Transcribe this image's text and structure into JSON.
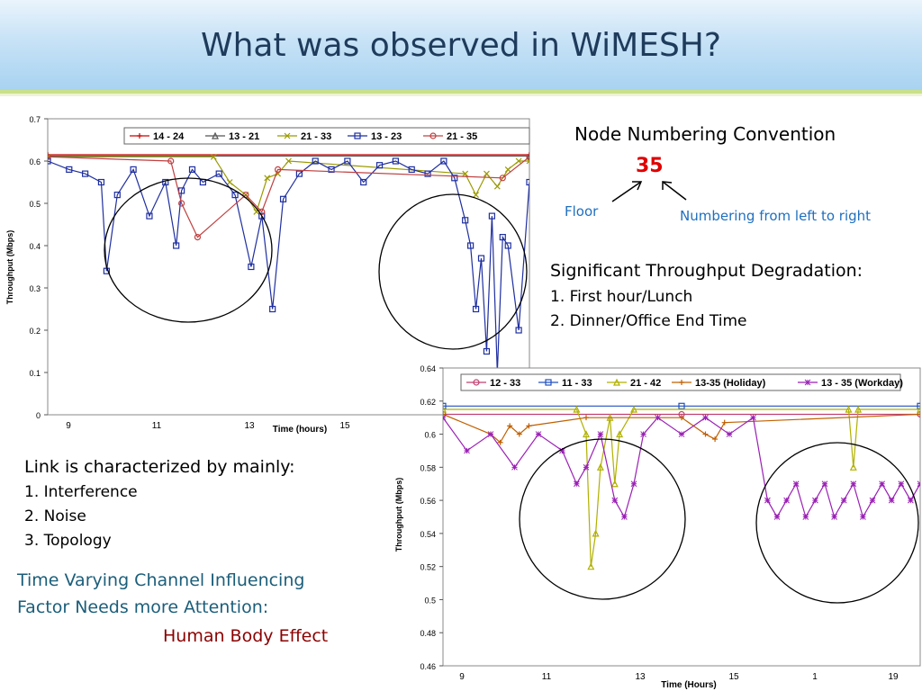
{
  "slide": {
    "title": "What was observed in WiMESH?",
    "node_convention": {
      "heading": "Node Numbering Convention",
      "example": "35",
      "floor_label": "Floor",
      "numbering_label": "Numbering from left to right"
    },
    "degradation": {
      "heading": "Significant Throughput Degradation:",
      "items": [
        "1. First hour/Lunch",
        "2. Dinner/Office End Time"
      ]
    },
    "link": {
      "heading": "Link is characterized by mainly:",
      "items": [
        "1. Interference",
        "2. Noise",
        "3. Topology"
      ]
    },
    "factor": {
      "line1": "Time Varying Channel Influencing",
      "line2": "Factor Needs more Attention:",
      "emphasis": "Human Body Effect"
    },
    "colors": {
      "title": "#1f3b5c",
      "red_number": "#e00000",
      "blue_note": "#1f6fbf",
      "teal": "#1b5e7a",
      "dark_red": "#8b0000"
    }
  },
  "chart_data": [
    {
      "type": "line",
      "xlabel": "Time (hours)",
      "ylabel": "Throughput (Mbps)",
      "ylim": [
        0,
        0.7
      ],
      "yticks": [
        "0.7",
        "0.6",
        "0.5",
        "0.4",
        "0.3",
        "0.2",
        "0.1",
        "0"
      ],
      "xticks": [
        "9",
        "11",
        "13",
        "15"
      ],
      "xlim": [
        8.5,
        17.5
      ],
      "legend": {
        "position": "top",
        "entries": [
          "14 - 24",
          "13 - 21",
          "21 - 33",
          "13 - 23",
          "21 - 35"
        ]
      },
      "series": [
        {
          "name": "14 - 24",
          "color": "#cc0000",
          "marker": "plus",
          "x": [
            8.5,
            17.5
          ],
          "y": [
            0.615,
            0.615
          ]
        },
        {
          "name": "13 - 21",
          "color": "#555555",
          "marker": "triangle",
          "x": [
            8.5,
            17.5
          ],
          "y": [
            0.612,
            0.612
          ]
        },
        {
          "name": "21 - 33",
          "color": "#9a9a00",
          "marker": "x",
          "x": [
            8.5,
            11.6,
            11.9,
            12.2,
            12.4,
            12.6,
            12.8,
            13.0,
            16.3,
            16.5,
            16.7,
            16.9,
            17.1,
            17.3,
            17.5
          ],
          "y": [
            0.61,
            0.61,
            0.55,
            0.52,
            0.48,
            0.56,
            0.57,
            0.6,
            0.57,
            0.52,
            0.57,
            0.54,
            0.58,
            0.6,
            0.6
          ]
        },
        {
          "name": "13 - 23",
          "color": "#1f2fa0",
          "marker": "square",
          "x": [
            8.5,
            8.9,
            9.2,
            9.5,
            9.6,
            9.8,
            10.1,
            10.4,
            10.7,
            10.9,
            11.0,
            11.2,
            11.4,
            11.7,
            12.0,
            12.3,
            12.5,
            12.7,
            12.9,
            13.2,
            13.5,
            13.8,
            14.1,
            14.4,
            14.7,
            15.0,
            15.3,
            15.6,
            15.9,
            16.1,
            16.3,
            16.4,
            16.5,
            16.6,
            16.7,
            16.8,
            16.9,
            17.0,
            17.1,
            17.3,
            17.5
          ],
          "y": [
            0.6,
            0.58,
            0.57,
            0.55,
            0.34,
            0.52,
            0.58,
            0.47,
            0.55,
            0.4,
            0.53,
            0.58,
            0.55,
            0.57,
            0.52,
            0.35,
            0.47,
            0.25,
            0.51,
            0.57,
            0.6,
            0.58,
            0.6,
            0.55,
            0.59,
            0.6,
            0.58,
            0.57,
            0.6,
            0.56,
            0.46,
            0.4,
            0.25,
            0.37,
            0.15,
            0.47,
            0.1,
            0.42,
            0.4,
            0.2,
            0.55
          ]
        },
        {
          "name": "21 - 35",
          "color": "#c04040",
          "marker": "circle",
          "x": [
            8.5,
            10.8,
            11.0,
            11.3,
            12.2,
            12.5,
            12.8,
            17.0,
            17.5
          ],
          "y": [
            0.61,
            0.6,
            0.5,
            0.42,
            0.52,
            0.48,
            0.58,
            0.56,
            0.61
          ]
        }
      ],
      "annotations": [
        "ellipse around first dip",
        "ellipse around second dip"
      ]
    },
    {
      "type": "line",
      "xlabel": "Time (Hours)",
      "ylabel": "Throughput (Mbps)",
      "ylim": [
        0.46,
        0.64
      ],
      "yticks": [
        "0.64",
        "0.62",
        "0.6",
        "0.58",
        "0.56",
        "0.54",
        "0.52",
        "0.5",
        "0.48",
        "0.46"
      ],
      "xticks": [
        "9",
        "11",
        "13",
        "15",
        "1",
        "19"
      ],
      "legend": {
        "position": "top",
        "entries": [
          "12 - 33",
          "11 - 33",
          "21 - 42",
          "13-35 (Holiday)",
          "13 - 35 (Workday)"
        ]
      },
      "series": [
        {
          "name": "12 - 33",
          "color": "#c04070",
          "marker": "circle",
          "x": [
            0,
            50,
            100
          ],
          "y": [
            0.612,
            0.612,
            0.612
          ]
        },
        {
          "name": "11 - 33",
          "color": "#2050c0",
          "marker": "square",
          "x": [
            0,
            50,
            100
          ],
          "y": [
            0.617,
            0.617,
            0.617
          ]
        },
        {
          "name": "21 - 42",
          "color": "#b0b000",
          "marker": "triangle",
          "x": [
            0,
            28,
            30,
            31,
            32,
            33,
            35,
            36,
            37,
            40,
            85,
            86,
            87,
            100
          ],
          "y": [
            0.615,
            0.615,
            0.6,
            0.52,
            0.54,
            0.58,
            0.61,
            0.57,
            0.6,
            0.615,
            0.615,
            0.58,
            0.615,
            0.615
          ]
        },
        {
          "name": "13-35 (Holiday)",
          "color": "#c06000",
          "marker": "plus",
          "x": [
            0,
            10,
            12,
            14,
            16,
            18,
            30,
            50,
            55,
            57,
            59,
            100
          ],
          "y": [
            0.612,
            0.6,
            0.595,
            0.605,
            0.6,
            0.605,
            0.61,
            0.61,
            0.6,
            0.597,
            0.607,
            0.612
          ]
        },
        {
          "name": "13 - 35 (Workday)",
          "color": "#9a1fb5",
          "marker": "star",
          "x": [
            0,
            5,
            10,
            15,
            20,
            25,
            28,
            30,
            33,
            36,
            38,
            40,
            42,
            45,
            50,
            55,
            60,
            65,
            68,
            70,
            72,
            74,
            76,
            78,
            80,
            82,
            84,
            86,
            88,
            90,
            92,
            94,
            96,
            98,
            100
          ],
          "y": [
            0.61,
            0.59,
            0.6,
            0.58,
            0.6,
            0.59,
            0.57,
            0.58,
            0.6,
            0.56,
            0.55,
            0.57,
            0.6,
            0.61,
            0.6,
            0.61,
            0.6,
            0.61,
            0.56,
            0.55,
            0.56,
            0.57,
            0.55,
            0.56,
            0.57,
            0.55,
            0.56,
            0.57,
            0.55,
            0.56,
            0.57,
            0.56,
            0.57,
            0.56,
            0.57
          ]
        }
      ],
      "annotations": [
        "ellipse around morning dip",
        "ellipse around evening dip"
      ]
    }
  ]
}
